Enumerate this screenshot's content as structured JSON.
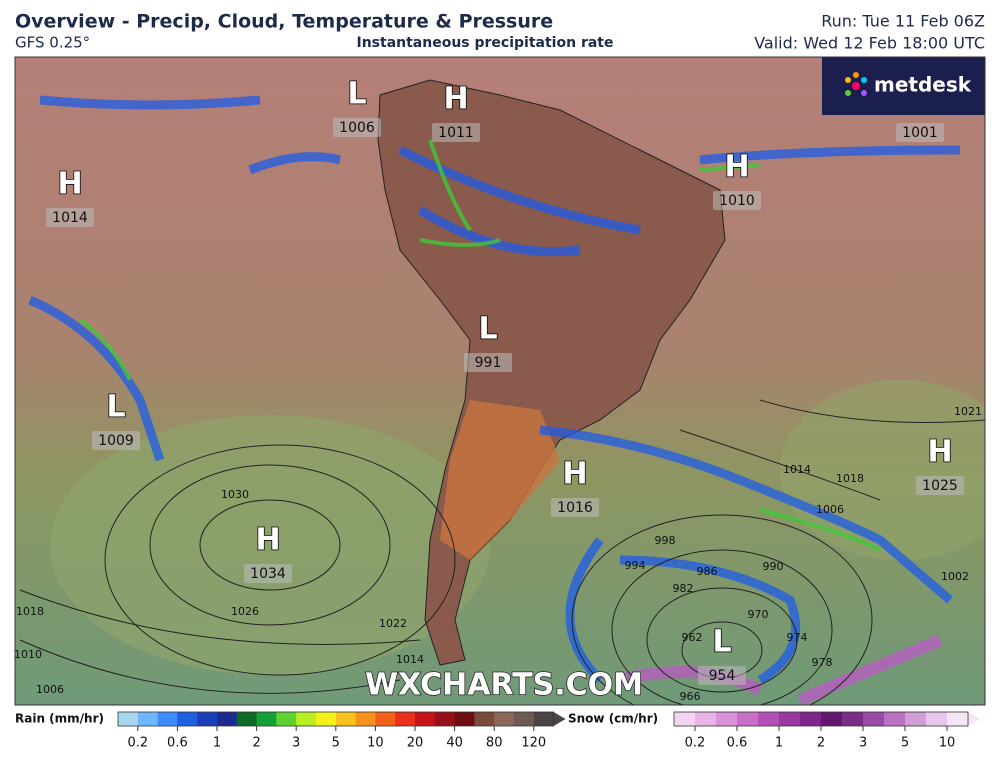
{
  "header": {
    "title": "Overview - Precip, Cloud, Temperature & Pressure",
    "model": "GFS 0.25°",
    "subtitle": "Instantaneous precipitation rate",
    "run": "Run: Tue 11 Feb 06Z",
    "valid": "Valid: Wed 12 Feb 18:00 UTC"
  },
  "logo": "metdesk",
  "watermark": "WXCHARTS.COM",
  "pressure_systems": [
    {
      "letter": "L",
      "value": 1006
    },
    {
      "letter": "H",
      "value": 1011
    },
    {
      "letter": "H",
      "value": 1014
    },
    {
      "letter": "H",
      "value": 1010
    },
    {
      "value": 1001
    },
    {
      "letter": "L",
      "value": 991
    },
    {
      "letter": "L",
      "value": 1009
    },
    {
      "letter": "H",
      "value": 1016
    },
    {
      "letter": "H",
      "value": 1025
    },
    {
      "letter": "H",
      "value": 1034
    },
    {
      "letter": "L",
      "value": 954
    }
  ],
  "isobar_labels": [
    1030,
    1026,
    1022,
    1018,
    1014,
    1010,
    1006,
    1014,
    1018,
    1021,
    1006,
    1002,
    998,
    994,
    990,
    986,
    982,
    978,
    974,
    970,
    966,
    962
  ],
  "legend": {
    "rain": {
      "label": "Rain (mm/hr)",
      "ticks": [
        0.2,
        0.6,
        1,
        2,
        3,
        5,
        10,
        20,
        40,
        80,
        120
      ],
      "colors": [
        "#a8d8f0",
        "#6fb6ff",
        "#3c8cff",
        "#1f5fe0",
        "#1a3fb8",
        "#1d2a90",
        "#0b6b22",
        "#13a03a",
        "#5fd230",
        "#b8ee22",
        "#f5f01c",
        "#f7c21c",
        "#f7931c",
        "#f4611a",
        "#e8301a",
        "#c6141a",
        "#96101a",
        "#6e0c12",
        "#7a4a3a",
        "#8c6656",
        "#6e5a52",
        "#4a4444"
      ]
    },
    "snow": {
      "label": "Snow (cm/hr)",
      "ticks": [
        0.2,
        0.6,
        1,
        2,
        3,
        5,
        10
      ],
      "colors": [
        "#f3d4f0",
        "#e8b4e6",
        "#d992d8",
        "#c870c8",
        "#b350b6",
        "#9a38a2",
        "#7f268c",
        "#62186e",
        "#7a2d88",
        "#9a4aa6",
        "#b872c0",
        "#d19ed6",
        "#e6c6ea",
        "#f5e6f6"
      ]
    }
  }
}
